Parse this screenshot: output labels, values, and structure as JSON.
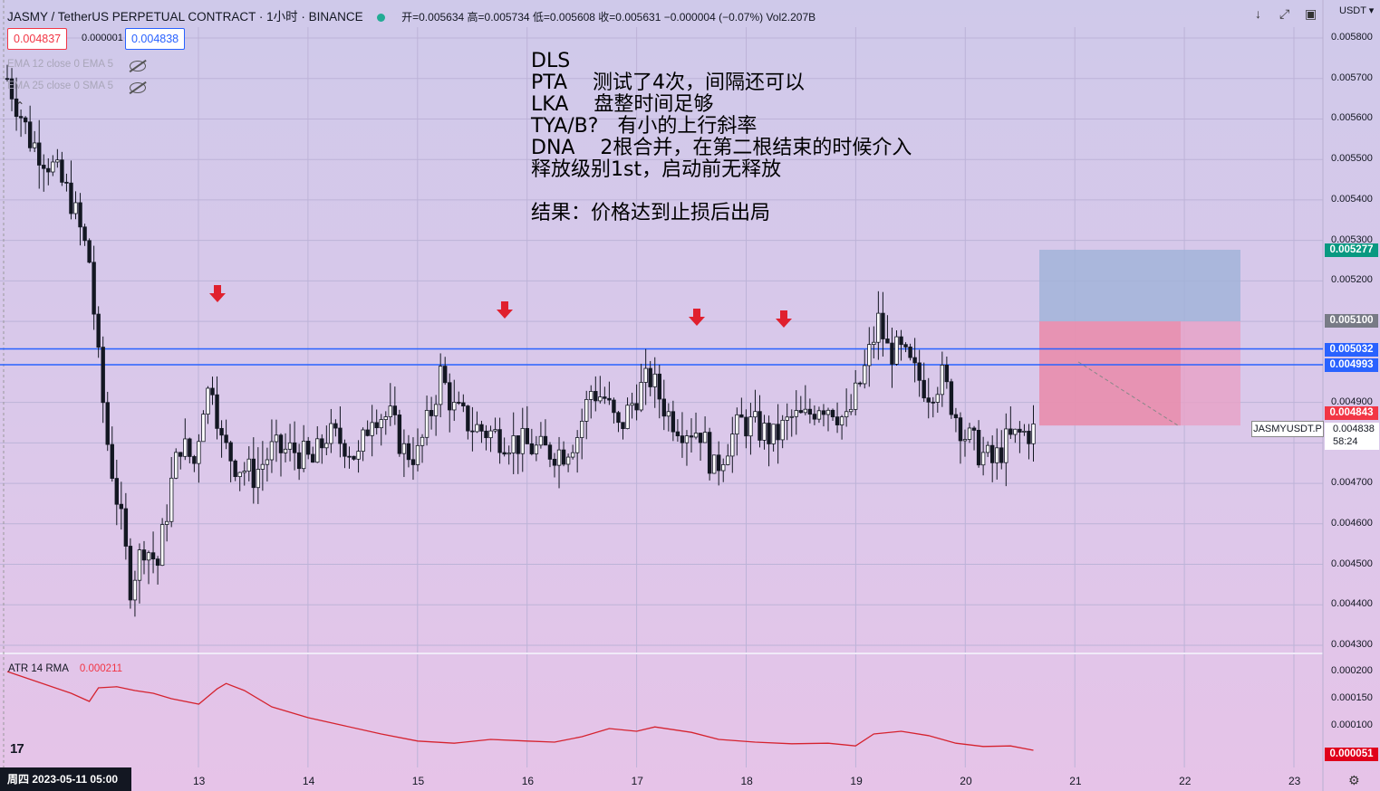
{
  "header": {
    "symbol_line": "JASMY / TetherUS PERPETUAL CONTRACT · 1小时 · BINANCE",
    "ohlc": "开=0.005634 高=0.005734 低=0.005608 收=0.005631 −0.000004 (−0.07%) Vol2.207B"
  },
  "price_boxes": {
    "sell": "0.004837",
    "spread": "0.000001",
    "buy": "0.004838"
  },
  "indicators": [
    {
      "label": "EMA 12 close 0 EMA 5"
    },
    {
      "label": "EMA 25 close 0 SMA 5"
    }
  ],
  "note_text": "DLS\nPTA    测试了4次，间隔还可以\nLKA    盘整时间足够\nTYA/B?   有小的上行斜率\nDNA    2根合并，在第二根结束的时候介入\n释放级别1st，启动前无释放\n\n结果：价格达到止损后出局",
  "currency": "USDT",
  "atr": {
    "label": "ATR 14 RMA",
    "value": "0.000211"
  },
  "date_cursor": "周四 2023-05-11   05:00",
  "symbol_tag": "JASMYUSDT.P",
  "last_price": {
    "price": "0.004838",
    "countdown": "58:24"
  },
  "tags": {
    "take_profit": {
      "value": "0.005277",
      "color": "#089981"
    },
    "entry": {
      "value": "0.005100",
      "color": "#787b86"
    },
    "line1": {
      "value": "0.005032",
      "color": "#2962ff"
    },
    "line2": {
      "value": "0.004993",
      "color": "#2962ff"
    },
    "stop": {
      "value": "0.004843",
      "color": "#f23645"
    },
    "atr_now": {
      "value": "0.000051",
      "color": "#e0001b"
    }
  },
  "chart_data": {
    "type": "candlestick",
    "y_ticks": [
      "0.005800",
      "0.005700",
      "0.005600",
      "0.005500",
      "0.005400",
      "0.005300",
      "0.005200",
      "0.005100",
      "0.004900",
      "0.004800",
      "0.004700",
      "0.004600",
      "0.004500",
      "0.004400",
      "0.004300"
    ],
    "y_tick_values": [
      0.0058,
      0.0057,
      0.0056,
      0.0055,
      0.0054,
      0.0053,
      0.0052,
      0.0051,
      0.0049,
      0.0048,
      0.0047,
      0.0046,
      0.0045,
      0.0044,
      0.0043
    ],
    "ylim": [
      0.00428,
      0.00588
    ],
    "x_ticks": [
      "13",
      "14",
      "15",
      "16",
      "17",
      "18",
      "19",
      "20",
      "21",
      "22",
      "23"
    ],
    "atr_ticks": [
      "0.000200",
      "0.000150",
      "0.000100"
    ],
    "atr_tick_values": [
      0.0002,
      0.00015,
      0.0001
    ],
    "atr_ylim": [
      4e-05,
      0.000215
    ],
    "horizontal_lines": [
      0.005032,
      0.004993
    ],
    "position": {
      "entry": 0.0051,
      "take_profit": 0.005277,
      "stop": 0.004843,
      "x_start": "20 ~17:00",
      "x_end": "22 ~16:00"
    },
    "arrow_markers": [
      "13 ~05:00",
      "15 ~20:00",
      "17 ~16:00",
      "18 ~08:00"
    ],
    "price_path": [
      [
        0,
        0.0057
      ],
      [
        5,
        0.00555
      ],
      [
        10,
        0.00548
      ],
      [
        14,
        0.0054
      ],
      [
        18,
        0.00525
      ],
      [
        20,
        0.005
      ],
      [
        22,
        0.0048
      ],
      [
        25,
        0.0046
      ],
      [
        27,
        0.00445
      ],
      [
        30,
        0.00455
      ],
      [
        33,
        0.0045
      ],
      [
        36,
        0.0047
      ],
      [
        38,
        0.0048
      ],
      [
        41,
        0.00475
      ],
      [
        43,
        0.0049
      ],
      [
        45,
        0.00495
      ],
      [
        47,
        0.0048
      ],
      [
        50,
        0.00475
      ],
      [
        54,
        0.00472
      ],
      [
        58,
        0.00478
      ],
      [
        63,
        0.00478
      ],
      [
        67,
        0.00475
      ],
      [
        70,
        0.00482
      ],
      [
        74,
        0.0048
      ],
      [
        77,
        0.00476
      ],
      [
        80,
        0.00488
      ],
      [
        84,
        0.00486
      ],
      [
        87,
        0.00478
      ],
      [
        90,
        0.00477
      ],
      [
        93,
        0.00488
      ],
      [
        95,
        0.00497
      ],
      [
        98,
        0.00488
      ],
      [
        102,
        0.00484
      ],
      [
        107,
        0.00482
      ],
      [
        112,
        0.0048
      ],
      [
        117,
        0.00478
      ],
      [
        122,
        0.00478
      ],
      [
        125,
        0.00482
      ],
      [
        128,
        0.00493
      ],
      [
        131,
        0.00491
      ],
      [
        134,
        0.00483
      ],
      [
        138,
        0.00492
      ],
      [
        141,
        0.00496
      ],
      [
        145,
        0.00487
      ],
      [
        148,
        0.00484
      ],
      [
        152,
        0.00483
      ],
      [
        155,
        0.00473
      ],
      [
        158,
        0.0048
      ],
      [
        161,
        0.00485
      ],
      [
        164,
        0.00484
      ],
      [
        168,
        0.00481
      ],
      [
        172,
        0.00486
      ],
      [
        175,
        0.00486
      ],
      [
        178,
        0.0049
      ],
      [
        181,
        0.00489
      ],
      [
        184,
        0.00485
      ],
      [
        188,
        0.00498
      ],
      [
        191,
        0.0051
      ],
      [
        193,
        0.00503
      ],
      [
        196,
        0.00502
      ],
      [
        199,
        0.00497
      ],
      [
        202,
        0.00493
      ],
      [
        205,
        0.00496
      ],
      [
        208,
        0.00487
      ],
      [
        210,
        0.00482
      ],
      [
        213,
        0.00478
      ],
      [
        216,
        0.00475
      ],
      [
        219,
        0.0048
      ],
      [
        222,
        0.00482
      ],
      [
        225,
        0.00483
      ]
    ],
    "atr_path": [
      [
        0,
        0.0002
      ],
      [
        14,
        0.00016
      ],
      [
        18,
        0.000145
      ],
      [
        20,
        0.00017
      ],
      [
        24,
        0.000172
      ],
      [
        28,
        0.000165
      ],
      [
        32,
        0.00016
      ],
      [
        36,
        0.00015
      ],
      [
        42,
        0.00014
      ],
      [
        46,
        0.000168
      ],
      [
        48,
        0.000178
      ],
      [
        52,
        0.000165
      ],
      [
        58,
        0.000135
      ],
      [
        66,
        0.000115
      ],
      [
        74,
        0.0001
      ],
      [
        82,
        8.5e-05
      ],
      [
        90,
        7.2e-05
      ],
      [
        98,
        6.8e-05
      ],
      [
        106,
        7.5e-05
      ],
      [
        114,
        7.2e-05
      ],
      [
        120,
        7e-05
      ],
      [
        126,
        8e-05
      ],
      [
        132,
        9.5e-05
      ],
      [
        138,
        9e-05
      ],
      [
        142,
        9.8e-05
      ],
      [
        150,
        8.8e-05
      ],
      [
        156,
        7.5e-05
      ],
      [
        164,
        7e-05
      ],
      [
        172,
        6.7e-05
      ],
      [
        180,
        6.8e-05
      ],
      [
        186,
        6.3e-05
      ],
      [
        190,
        8.5e-05
      ],
      [
        196,
        9e-05
      ],
      [
        202,
        8.2e-05
      ],
      [
        208,
        6.8e-05
      ],
      [
        214,
        6.2e-05
      ],
      [
        220,
        6.3e-05
      ],
      [
        225,
        5.5e-05
      ]
    ]
  }
}
